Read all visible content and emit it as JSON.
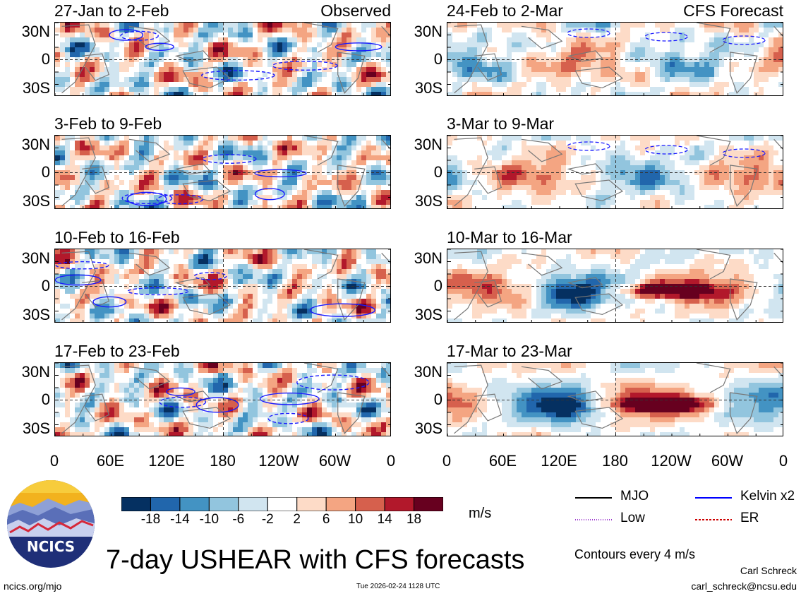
{
  "chart_data": {
    "type": "heatmap",
    "title": "7-day USHEAR with CFS forecasts",
    "column_labels": {
      "observed": "Observed",
      "forecast": "CFS Forecast"
    },
    "panels": [
      {
        "column": "observed",
        "row": 0,
        "period": "27-Jan to 2-Feb"
      },
      {
        "column": "observed",
        "row": 1,
        "period": "3-Feb to 9-Feb"
      },
      {
        "column": "observed",
        "row": 2,
        "period": "10-Feb to 16-Feb"
      },
      {
        "column": "observed",
        "row": 3,
        "period": "17-Feb to 23-Feb"
      },
      {
        "column": "forecast",
        "row": 0,
        "period": "24-Feb to 2-Mar"
      },
      {
        "column": "forecast",
        "row": 1,
        "period": "3-Mar to 9-Mar"
      },
      {
        "column": "forecast",
        "row": 2,
        "period": "10-Mar to 16-Mar"
      },
      {
        "column": "forecast",
        "row": 3,
        "period": "17-Mar to 23-Mar"
      }
    ],
    "lat_ticks": [
      "30N",
      "0",
      "30S"
    ],
    "lon_ticks": [
      "0",
      "60E",
      "120E",
      "180",
      "120W",
      "60W",
      "0"
    ],
    "colorbar": {
      "unit": "m/s",
      "levels": [
        "-18",
        "-14",
        "-10",
        "-6",
        "-2",
        "2",
        "6",
        "10",
        "14",
        "18"
      ],
      "colors": [
        "#053061",
        "#2166ac",
        "#4393c3",
        "#92c5de",
        "#d1e5f0",
        "#ffffff",
        "#fddbc7",
        "#f4a582",
        "#d6604d",
        "#b2182b",
        "#67001f"
      ]
    },
    "legend": [
      {
        "label": "MJO",
        "color": "#000000",
        "style": "solid"
      },
      {
        "label": "Kelvin x2",
        "color": "#0000ff",
        "style": "solid"
      },
      {
        "label": "Low",
        "color": "#9933cc",
        "style": "dotted"
      },
      {
        "label": "ER",
        "color": "#cc0000",
        "style": "dashed"
      }
    ],
    "contour_note": "Contours every 4 m/s"
  },
  "footer": {
    "left": "ncics.org/mjo",
    "center": "Tue 2026-02-24 1128 UTC",
    "author": "Carl Schreck",
    "email": "carl_schreck@ncsu.edu",
    "logo_text": "NCICS"
  }
}
